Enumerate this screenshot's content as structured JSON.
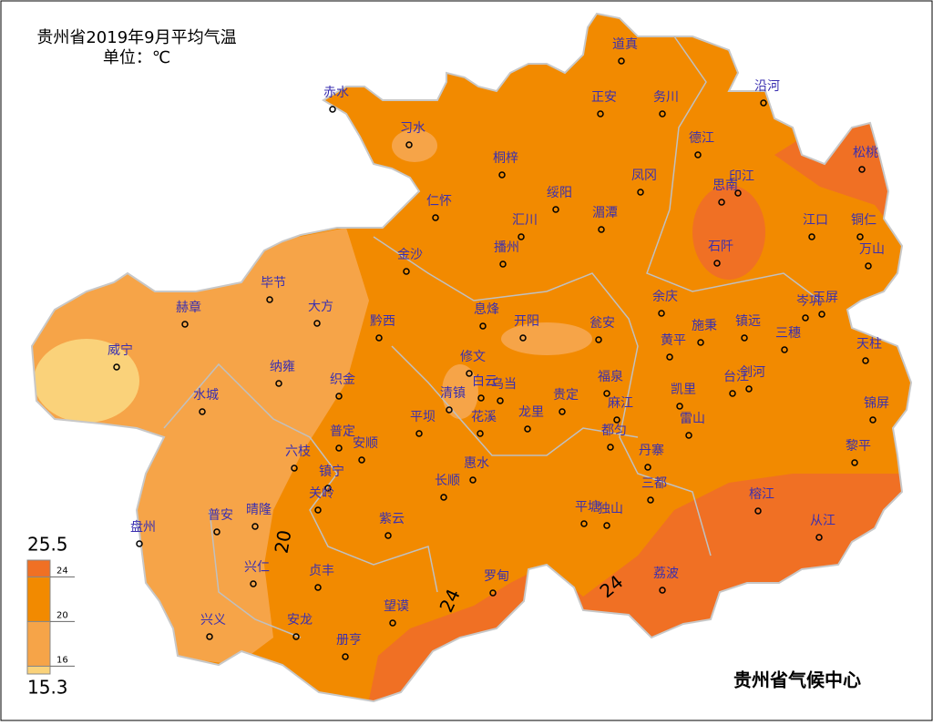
{
  "title": "贵州省2019年9月平均气温",
  "unit": "单位：℃",
  "credit": "贵州省气候中心",
  "legend": {
    "max": 25.5,
    "min": 15.3,
    "ticks": [
      24,
      20,
      16
    ],
    "colors": [
      "#fad27a",
      "#f6a448",
      "#f28a00",
      "#f07024"
    ]
  },
  "contour_labels": [
    20,
    24,
    24
  ],
  "stations": [
    "道真",
    "正安",
    "务川",
    "沿河",
    "赤水",
    "习水",
    "桐梓",
    "德江",
    "松桃",
    "印江",
    "思南",
    "凤冈",
    "绥阳",
    "仁怀",
    "汇川",
    "湄潭",
    "江口",
    "铜仁",
    "播州",
    "石阡",
    "万山",
    "金沙",
    "毕节",
    "大方",
    "赫章",
    "余庆",
    "岑巩",
    "玉屏",
    "黔西",
    "息烽",
    "开阳",
    "瓮安",
    "施秉",
    "镇远",
    "三穗",
    "黄平",
    "天柱",
    "威宁",
    "纳雍",
    "修文",
    "织金",
    "福泉",
    "剑河",
    "台江",
    "白云",
    "乌当",
    "水城",
    "清镇",
    "贵定",
    "麻江",
    "凯里",
    "锦屏",
    "花溪",
    "龙里",
    "雷山",
    "平坝",
    "都匀",
    "普定",
    "安顺",
    "六枝",
    "丹寨",
    "黎平",
    "惠水",
    "镇宁",
    "三都",
    "关岭",
    "长顺",
    "榕江",
    "晴隆",
    "普安",
    "平塘",
    "独山",
    "紫云",
    "盘州",
    "从江",
    "兴仁",
    "贞丰",
    "罗甸",
    "荔波",
    "兴义",
    "安龙",
    "望谟",
    "册亨"
  ]
}
